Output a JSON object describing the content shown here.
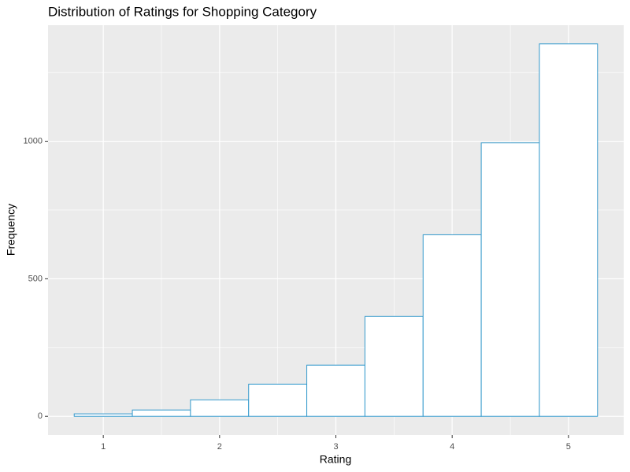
{
  "chart_data": {
    "type": "histogram",
    "title": "Distribution of Ratings for Shopping Category",
    "x_label": "Rating",
    "y_label": "Frequency",
    "bins": [
      0.75,
      1.25,
      1.75,
      2.25,
      2.75,
      3.25,
      3.75,
      4.25,
      4.75,
      5.25
    ],
    "values": [
      9,
      23,
      60,
      117,
      186,
      363,
      660,
      994,
      1354
    ],
    "fill": "#ffffff",
    "color": "#3399cc",
    "xlim": [
      0.525,
      5.475
    ],
    "xticks": [
      1,
      2,
      3,
      4,
      5
    ],
    "xminor": [
      1.5,
      2.5,
      3.5,
      4.5
    ],
    "ylim": [
      -68,
      1422
    ],
    "yticks": [
      0,
      500,
      1000
    ],
    "yminor": [
      250,
      750,
      1250
    ],
    "grid": true
  }
}
